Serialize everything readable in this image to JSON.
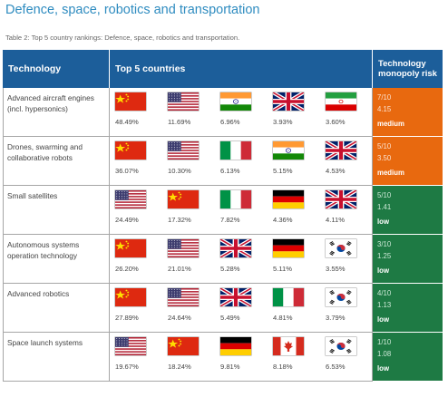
{
  "page": {
    "title": "Defence, space, robotics and transportation",
    "caption": "Table 2: Top 5 country rankings: Defence, space, robotics and transportation."
  },
  "table": {
    "headers": {
      "technology": "Technology",
      "countries": "Top 5 countries",
      "risk": "Technology monopoly risk"
    },
    "rows": [
      {
        "technology": "Advanced aircraft engines (incl. hypersonics)",
        "countries": [
          {
            "flag": "china-flag",
            "share": "48.49%"
          },
          {
            "flag": "usa-flag",
            "share": "11.69%"
          },
          {
            "flag": "india-flag",
            "share": "6.96%"
          },
          {
            "flag": "uk-flag",
            "share": "3.93%"
          },
          {
            "flag": "iran-flag",
            "share": "3.60%"
          }
        ],
        "risk_score": "7/10",
        "risk_value": "4.15",
        "risk_level": "medium"
      },
      {
        "technology": "Drones, swarming and collaborative robots",
        "countries": [
          {
            "flag": "china-flag",
            "share": "36.07%"
          },
          {
            "flag": "usa-flag",
            "share": "10.30%"
          },
          {
            "flag": "italy-flag",
            "share": "6.13%"
          },
          {
            "flag": "india-flag",
            "share": "5.15%"
          },
          {
            "flag": "uk-flag",
            "share": "4.53%"
          }
        ],
        "risk_score": "5/10",
        "risk_value": "3.50",
        "risk_level": "medium"
      },
      {
        "technology": "Small satellites",
        "countries": [
          {
            "flag": "usa-flag",
            "share": "24.49%"
          },
          {
            "flag": "china-flag",
            "share": "17.32%"
          },
          {
            "flag": "italy-flag",
            "share": "7.82%"
          },
          {
            "flag": "germany-flag",
            "share": "4.36%"
          },
          {
            "flag": "uk-flag",
            "share": "4.11%"
          }
        ],
        "risk_score": "5/10",
        "risk_value": "1.41",
        "risk_level": "low"
      },
      {
        "technology": "Autonomous systems operation technology",
        "countries": [
          {
            "flag": "china-flag",
            "share": "26.20%"
          },
          {
            "flag": "usa-flag",
            "share": "21.01%"
          },
          {
            "flag": "uk-flag",
            "share": "5.28%"
          },
          {
            "flag": "germany-flag",
            "share": "5.11%"
          },
          {
            "flag": "south-korea-flag",
            "share": "3.55%"
          }
        ],
        "risk_score": "3/10",
        "risk_value": "1.25",
        "risk_level": "low"
      },
      {
        "technology": "Advanced robotics",
        "countries": [
          {
            "flag": "china-flag",
            "share": "27.89%"
          },
          {
            "flag": "usa-flag",
            "share": "24.64%"
          },
          {
            "flag": "uk-flag",
            "share": "5.49%"
          },
          {
            "flag": "italy-flag",
            "share": "4.81%"
          },
          {
            "flag": "south-korea-flag",
            "share": "3.79%"
          }
        ],
        "risk_score": "4/10",
        "risk_value": "1.13",
        "risk_level": "low"
      },
      {
        "technology": "Space launch systems",
        "countries": [
          {
            "flag": "usa-flag",
            "share": "19.67%"
          },
          {
            "flag": "china-flag",
            "share": "18.24%"
          },
          {
            "flag": "germany-flag",
            "share": "9.81%"
          },
          {
            "flag": "canada-flag",
            "share": "8.18%"
          },
          {
            "flag": "south-korea-flag",
            "share": "6.53%"
          }
        ],
        "risk_score": "1/10",
        "risk_value": "1.08",
        "risk_level": "low"
      }
    ]
  },
  "colors": {
    "header_bg": "#1c5e9a",
    "title": "#2f8cc0",
    "risk_medium": "#e8690f",
    "risk_low": "#1e7a44"
  }
}
